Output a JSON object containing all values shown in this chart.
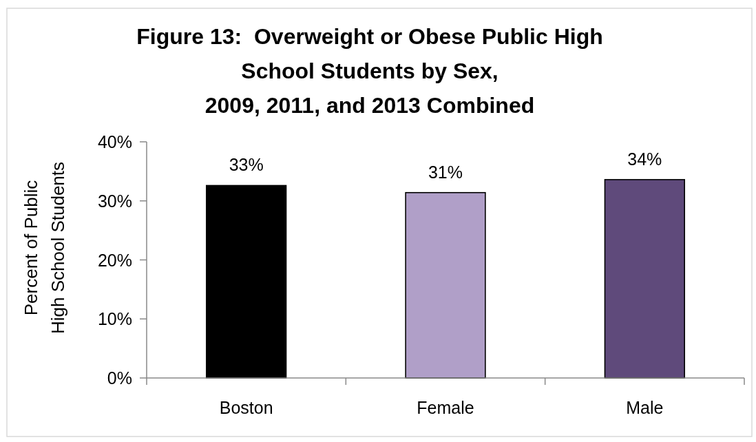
{
  "chart_data": {
    "type": "bar",
    "title": "Figure 13:  Overweight or Obese Public High School Students by Sex,\n2009, 2011, and 2013 Combined",
    "ylabel": "Percent of Public High School Students",
    "categories": [
      "Boston",
      "Female",
      "Male"
    ],
    "values": [
      32.6,
      31.4,
      33.6
    ],
    "colors": [
      "#000000",
      "#b09fc8",
      "#5f4a7b"
    ],
    "value_labels": [
      "33%",
      "31%",
      "34%"
    ],
    "ylim": [
      0,
      40
    ],
    "yticks": [
      {
        "value": 0,
        "label": "0%"
      },
      {
        "value": 10,
        "label": "10%"
      },
      {
        "value": 20,
        "label": "20%"
      },
      {
        "value": 30,
        "label": "30%"
      },
      {
        "value": 40,
        "label": "40%"
      }
    ]
  }
}
